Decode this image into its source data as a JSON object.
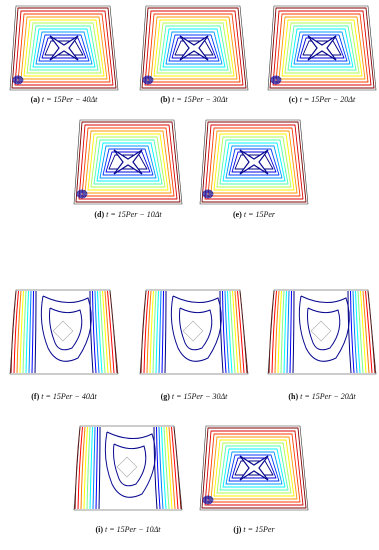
{
  "figure": {
    "panels": [
      {
        "label": "(a)",
        "caption": "t = 15Per − 40Δt"
      },
      {
        "label": "(b)",
        "caption": "t = 15Per − 30Δt"
      },
      {
        "label": "(c)",
        "caption": "t = 15Per − 20Δt"
      },
      {
        "label": "(d)",
        "caption": "t = 15Per − 10Δt"
      },
      {
        "label": "(e)",
        "caption": "t = 15Per"
      },
      {
        "label": "(f)",
        "caption": "t = 15Per − 40Δt"
      },
      {
        "label": "(g)",
        "caption": "t = 15Per − 30Δt"
      },
      {
        "label": "(h)",
        "caption": "t = 15Per − 20Δt"
      },
      {
        "label": "(i)",
        "caption": "t = 15Per − 10Δt"
      },
      {
        "label": "(j)",
        "caption": "t = 15Per"
      }
    ]
  }
}
